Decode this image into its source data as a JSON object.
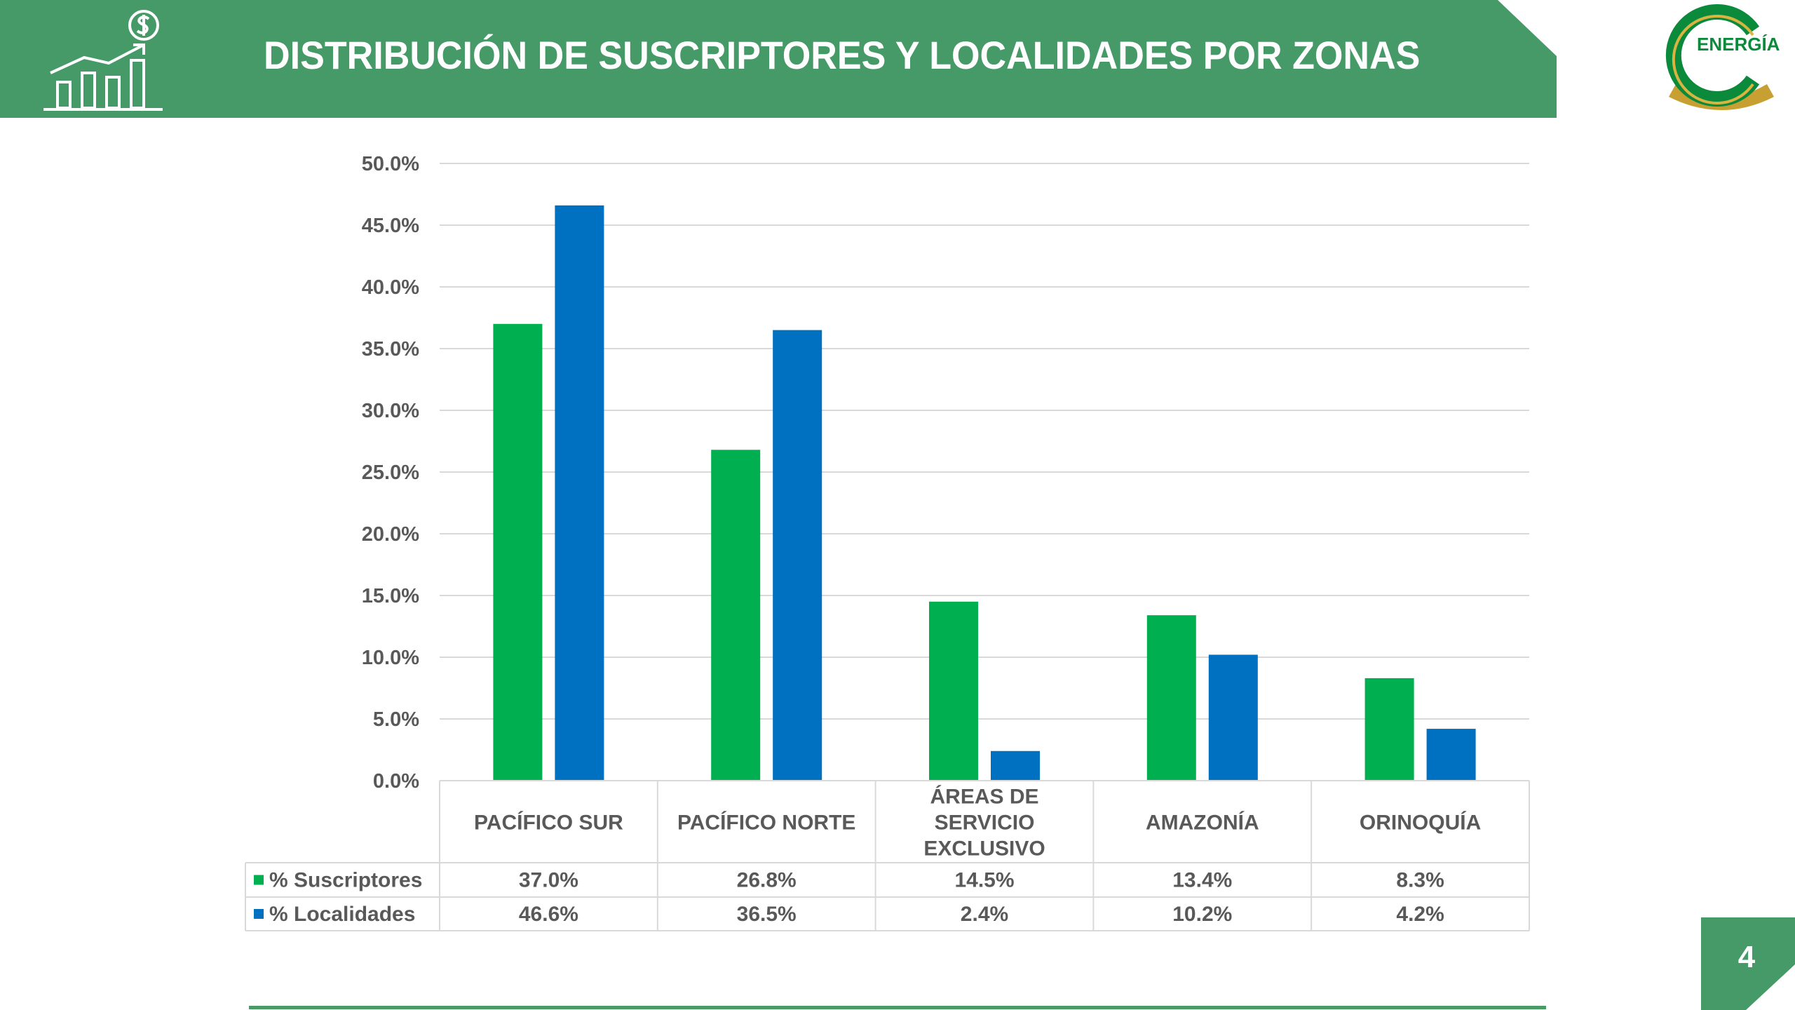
{
  "header": {
    "title": "DISTRIBUCIÓN DE SUSCRIPTORES Y LOCALIDADES POR ZONAS",
    "banner_color": "#469a68",
    "icon": "growth-chart-dollar-icon"
  },
  "logo": {
    "text": "ENERGÍA",
    "icon": "cenergia-logo"
  },
  "page_number": "4",
  "colors": {
    "suscriptores": "#00b050",
    "localidades": "#0070c0",
    "grid": "#d9d9d9",
    "text": "#595959"
  },
  "chart_data": {
    "type": "bar",
    "categories": [
      "PACÍFICO SUR",
      "PACÍFICO NORTE",
      "ÁREAS DE SERVICIO EXCLUSIVO",
      "AMAZONÍA",
      "ORINOQUÍA"
    ],
    "category_lines": [
      [
        "PACÍFICO SUR"
      ],
      [
        "PACÍFICO NORTE"
      ],
      [
        "ÁREAS DE",
        "SERVICIO",
        "EXCLUSIVO"
      ],
      [
        "AMAZONÍA"
      ],
      [
        "ORINOQUÍA"
      ]
    ],
    "series": [
      {
        "name": "% Suscriptores",
        "values": [
          37.0,
          26.8,
          14.5,
          13.4,
          8.3
        ],
        "labels": [
          "37.0%",
          "26.8%",
          "14.5%",
          "13.4%",
          "8.3%"
        ]
      },
      {
        "name": "% Localidades",
        "values": [
          46.6,
          36.5,
          2.4,
          10.2,
          4.2
        ],
        "labels": [
          "46.6%",
          "36.5%",
          "2.4%",
          "10.2%",
          "4.2%"
        ]
      }
    ],
    "ylim": [
      0,
      50
    ],
    "yticks": [
      "0.0%",
      "5.0%",
      "10.0%",
      "15.0%",
      "20.0%",
      "25.0%",
      "30.0%",
      "35.0%",
      "40.0%",
      "45.0%",
      "50.0%"
    ],
    "grid": true,
    "legend": "data-table"
  }
}
